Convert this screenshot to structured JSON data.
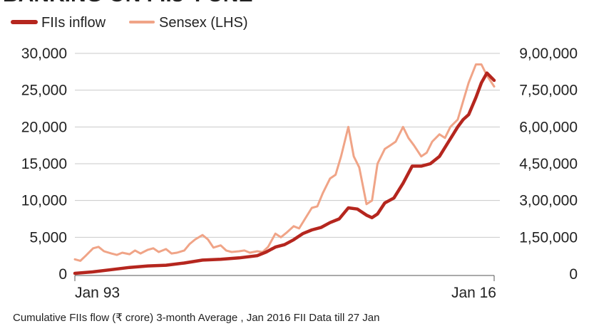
{
  "title": "BANKING ON FIIs' FUNE",
  "footnote": "Cumulative FIIs flow (₹ crore) 3-month Average , Jan 2016 FII Data till 27 Jan",
  "colors": {
    "fii": "#b5261e",
    "sensex": "#f0a487",
    "grid": "#c9c9c9"
  },
  "chart_data": {
    "type": "line",
    "title": "",
    "x_ticks": [
      "Jan 93",
      "Jan 16"
    ],
    "xlim": [
      1993,
      2016
    ],
    "left_axis": {
      "label": "",
      "ticks": [
        "0",
        "5,000",
        "10,000",
        "15,000",
        "20,000",
        "25,000",
        "30,000"
      ],
      "ylim": [
        0,
        30000
      ]
    },
    "right_axis": {
      "label": "",
      "ticks": [
        "0",
        "1,50,000",
        "3,00,000",
        "4,50,000",
        "6,00,000",
        "7,50,000",
        "9,00,000"
      ],
      "ylim": [
        0,
        900000
      ]
    },
    "legend": {
      "position": "top-left",
      "entries": [
        "FIIs inflow",
        "Sensex (LHS)"
      ]
    },
    "grid": true,
    "series": [
      {
        "name": "Sensex (LHS)",
        "axis": "left",
        "color": "#f0a487",
        "x": [
          1993.0,
          1993.3,
          1993.6,
          1994.0,
          1994.3,
          1994.6,
          1995.0,
          1995.3,
          1995.6,
          1996.0,
          1996.3,
          1996.6,
          1997.0,
          1997.3,
          1997.6,
          1998.0,
          1998.3,
          1998.6,
          1999.0,
          1999.3,
          1999.6,
          2000.0,
          2000.3,
          2000.6,
          2001.0,
          2001.3,
          2001.6,
          2002.0,
          2002.3,
          2002.6,
          2003.0,
          2003.3,
          2003.6,
          2004.0,
          2004.3,
          2004.6,
          2005.0,
          2005.3,
          2005.6,
          2006.0,
          2006.3,
          2006.6,
          2007.0,
          2007.3,
          2007.6,
          2008.0,
          2008.3,
          2008.6,
          2009.0,
          2009.3,
          2009.6,
          2010.0,
          2010.3,
          2010.6,
          2011.0,
          2011.3,
          2011.6,
          2012.0,
          2012.3,
          2012.6,
          2013.0,
          2013.3,
          2013.6,
          2014.0,
          2014.3,
          2014.6,
          2015.0,
          2015.3,
          2015.6,
          2016.0
        ],
        "values": [
          2000,
          1800,
          2500,
          3500,
          3700,
          3100,
          2800,
          2600,
          2900,
          2700,
          3200,
          2800,
          3300,
          3500,
          3000,
          3400,
          2800,
          2900,
          3200,
          4100,
          4700,
          5300,
          4700,
          3600,
          3900,
          3200,
          3000,
          3100,
          3200,
          2900,
          3100,
          3000,
          3700,
          5500,
          5000,
          5600,
          6500,
          6200,
          7400,
          9000,
          9200,
          11000,
          13000,
          13500,
          16000,
          20000,
          16000,
          14500,
          9500,
          10000,
          15000,
          17000,
          17500,
          18000,
          20000,
          18500,
          17500,
          16000,
          16500,
          18000,
          19000,
          18500,
          20000,
          21000,
          23500,
          26000,
          28500,
          28500,
          27000,
          25500
        ]
      },
      {
        "name": "FIIs inflow",
        "axis": "right",
        "color": "#b5261e",
        "x": [
          1993.0,
          1994.0,
          1995.0,
          1996.0,
          1997.0,
          1998.0,
          1999.0,
          2000.0,
          2001.0,
          2002.0,
          2003.0,
          2003.5,
          2004.0,
          2004.5,
          2005.0,
          2005.5,
          2006.0,
          2006.5,
          2007.0,
          2007.5,
          2008.0,
          2008.5,
          2009.0,
          2009.3,
          2009.6,
          2010.0,
          2010.5,
          2011.0,
          2011.5,
          2012.0,
          2012.5,
          2013.0,
          2013.5,
          2014.0,
          2014.3,
          2014.6,
          2015.0,
          2015.3,
          2015.6,
          2016.0
        ],
        "values": [
          3000,
          9000,
          18000,
          27000,
          33000,
          36000,
          45000,
          57000,
          60000,
          66000,
          75000,
          90000,
          110000,
          120000,
          140000,
          165000,
          180000,
          190000,
          210000,
          225000,
          270000,
          265000,
          240000,
          230000,
          245000,
          290000,
          310000,
          370000,
          440000,
          440000,
          450000,
          480000,
          540000,
          600000,
          630000,
          650000,
          720000,
          780000,
          820000,
          790000
        ]
      }
    ]
  }
}
